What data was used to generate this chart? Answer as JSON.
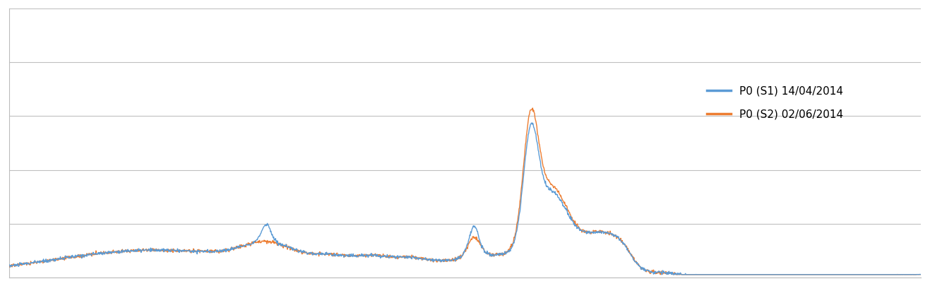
{
  "title": "",
  "line1_label": "P0 (S1) 14/04/2014",
  "line2_label": "P0 (S2) 02/06/2014",
  "line1_color": "#5B9BD5",
  "line2_color": "#ED7D31",
  "background_color": "#FFFFFF",
  "grid_color": "#C0C0C0",
  "ylim": [
    0,
    1.0
  ],
  "xlim": [
    0,
    1000
  ],
  "figsize": [
    13.17,
    4.05
  ],
  "dpi": 100,
  "legend_fontsize": 11,
  "line_width": 1.0
}
